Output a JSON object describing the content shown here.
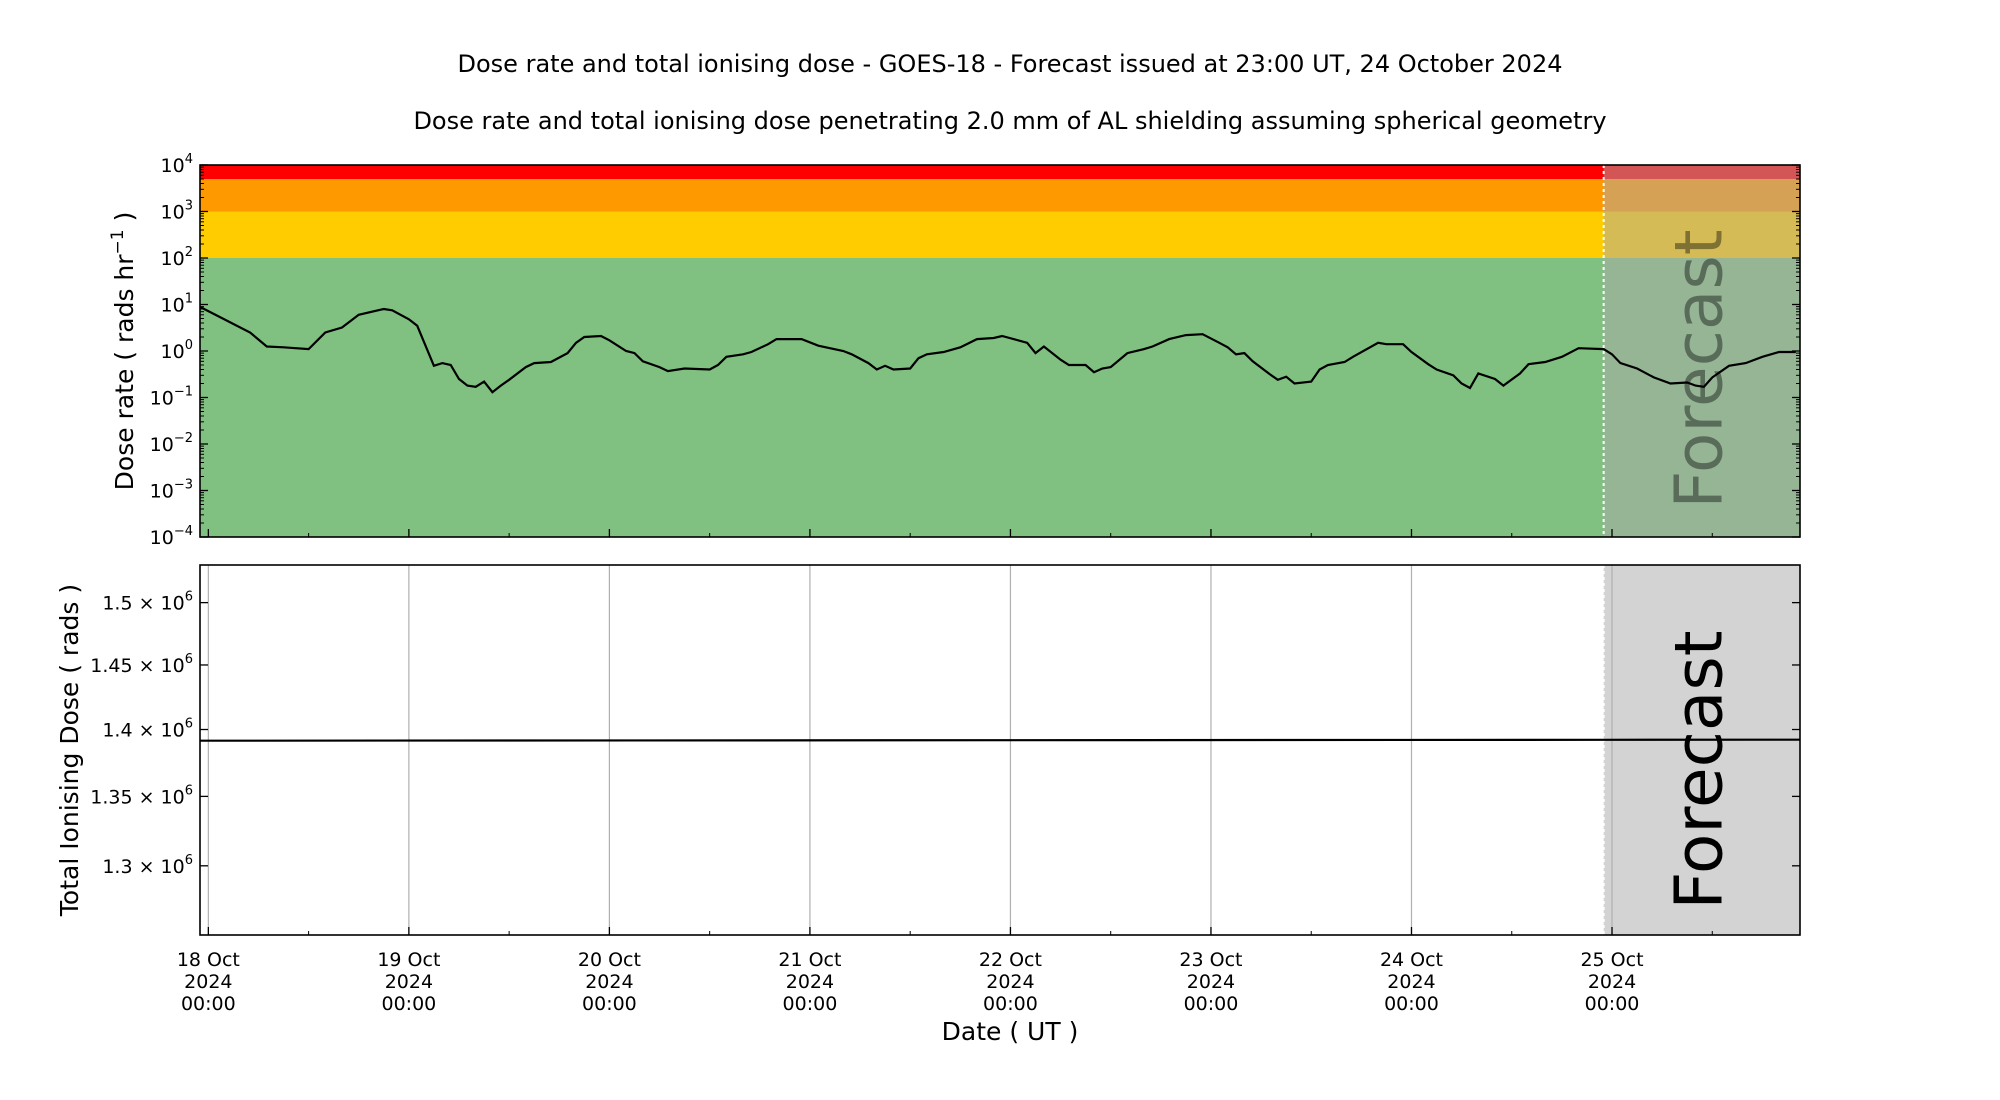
{
  "chart_data": [
    {
      "type": "line",
      "title": "Dose rate and total ionising dose - GOES-18 - Forecast issued at 23:00 UT, 24 October 2024",
      "subtitle": "Dose rate and total ionising dose penetrating 2.0 mm of AL shielding assuming spherical geometry",
      "ylabel": {
        "text": "Dose rate ( rads hr",
        "sup": "−1",
        "after": " )"
      },
      "yscale": "log",
      "ylim": [
        0.0001,
        10000
      ],
      "yticks": [
        {
          "value": 0.0001,
          "base": "10",
          "exp": "−4"
        },
        {
          "value": 0.001,
          "base": "10",
          "exp": "−3"
        },
        {
          "value": 0.01,
          "base": "10",
          "exp": "−2"
        },
        {
          "value": 0.1,
          "base": "10",
          "exp": "−1"
        },
        {
          "value": 1,
          "base": "10",
          "exp": "0"
        },
        {
          "value": 10,
          "base": "10",
          "exp": "1"
        },
        {
          "value": 100,
          "base": "10",
          "exp": "2"
        },
        {
          "value": 1000,
          "base": "10",
          "exp": "3"
        },
        {
          "value": 10000,
          "base": "10",
          "exp": "4"
        }
      ],
      "xlim": [
        "2024-10-17T23:00",
        "2024-10-25T22:30"
      ],
      "grid": false,
      "bands": [
        {
          "from": 0.0001,
          "to": 100,
          "color": "#80c080"
        },
        {
          "from": 100,
          "to": 1000,
          "color": "#ffcc00"
        },
        {
          "from": 1000,
          "to": 5000,
          "color": "#ff9900"
        },
        {
          "from": 5000,
          "to": 10000,
          "color": "#ff0000"
        }
      ],
      "line_color": "#000000",
      "forecast_start": "2024-10-24T23:00",
      "forecast_label": "Forecast",
      "series": [
        {
          "points": [
            [
              "2024-10-17T23:00",
              8.9
            ],
            [
              "2024-10-18T05:00",
              2.5
            ],
            [
              "2024-10-18T07:00",
              1.25
            ],
            [
              "2024-10-18T09:00",
              1.2
            ],
            [
              "2024-10-18T12:00",
              1.1
            ],
            [
              "2024-10-18T14:00",
              2.5
            ],
            [
              "2024-10-18T16:00",
              3.2
            ],
            [
              "2024-10-18T18:00",
              6
            ],
            [
              "2024-10-18T21:00",
              8
            ],
            [
              "2024-10-18T22:00",
              7.5
            ],
            [
              "2024-10-19T00:00",
              4.8
            ],
            [
              "2024-10-19T01:00",
              3.5
            ],
            [
              "2024-10-19T03:00",
              0.48
            ],
            [
              "2024-10-19T04:00",
              0.55
            ],
            [
              "2024-10-19T05:00",
              0.5
            ],
            [
              "2024-10-19T06:00",
              0.25
            ],
            [
              "2024-10-19T07:00",
              0.18
            ],
            [
              "2024-10-19T08:00",
              0.17
            ],
            [
              "2024-10-19T09:00",
              0.22
            ],
            [
              "2024-10-19T10:00",
              0.13
            ],
            [
              "2024-10-19T11:00",
              0.18
            ],
            [
              "2024-10-19T12:00",
              0.24
            ],
            [
              "2024-10-19T14:00",
              0.45
            ],
            [
              "2024-10-19T15:00",
              0.55
            ],
            [
              "2024-10-19T17:00",
              0.58
            ],
            [
              "2024-10-19T19:00",
              0.9
            ],
            [
              "2024-10-19T20:00",
              1.5
            ],
            [
              "2024-10-19T21:00",
              2.0
            ],
            [
              "2024-10-19T23:00",
              2.1
            ],
            [
              "2024-10-20T00:00",
              1.7
            ],
            [
              "2024-10-20T02:00",
              1.0
            ],
            [
              "2024-10-20T03:00",
              0.9
            ],
            [
              "2024-10-20T04:00",
              0.6
            ],
            [
              "2024-10-20T06:00",
              0.45
            ],
            [
              "2024-10-20T07:00",
              0.37
            ],
            [
              "2024-10-20T09:00",
              0.42
            ],
            [
              "2024-10-20T12:00",
              0.4
            ],
            [
              "2024-10-20T13:00",
              0.5
            ],
            [
              "2024-10-20T14:00",
              0.75
            ],
            [
              "2024-10-20T16:00",
              0.85
            ],
            [
              "2024-10-20T17:00",
              0.95
            ],
            [
              "2024-10-20T19:00",
              1.4
            ],
            [
              "2024-10-20T20:00",
              1.8
            ],
            [
              "2024-10-20T23:00",
              1.8
            ],
            [
              "2024-10-21T01:00",
              1.3
            ],
            [
              "2024-10-21T04:00",
              1.0
            ],
            [
              "2024-10-21T05:00",
              0.85
            ],
            [
              "2024-10-21T07:00",
              0.55
            ],
            [
              "2024-10-21T08:00",
              0.4
            ],
            [
              "2024-10-21T09:00",
              0.48
            ],
            [
              "2024-10-21T10:00",
              0.4
            ],
            [
              "2024-10-21T12:00",
              0.42
            ],
            [
              "2024-10-21T13:00",
              0.7
            ],
            [
              "2024-10-21T14:00",
              0.85
            ],
            [
              "2024-10-21T16:00",
              0.95
            ],
            [
              "2024-10-21T18:00",
              1.2
            ],
            [
              "2024-10-21T20:00",
              1.8
            ],
            [
              "2024-10-21T22:00",
              1.9
            ],
            [
              "2024-10-21T23:00",
              2.1
            ],
            [
              "2024-10-22T02:00",
              1.5
            ],
            [
              "2024-10-22T03:00",
              0.9
            ],
            [
              "2024-10-22T04:00",
              1.25
            ],
            [
              "2024-10-22T06:00",
              0.65
            ],
            [
              "2024-10-22T07:00",
              0.5
            ],
            [
              "2024-10-22T09:00",
              0.5
            ],
            [
              "2024-10-22T10:00",
              0.35
            ],
            [
              "2024-10-22T11:00",
              0.42
            ],
            [
              "2024-10-22T12:00",
              0.45
            ],
            [
              "2024-10-22T14:00",
              0.9
            ],
            [
              "2024-10-22T16:00",
              1.1
            ],
            [
              "2024-10-22T17:00",
              1.25
            ],
            [
              "2024-10-22T19:00",
              1.8
            ],
            [
              "2024-10-22T21:00",
              2.2
            ],
            [
              "2024-10-22T23:00",
              2.3
            ],
            [
              "2024-10-23T01:00",
              1.5
            ],
            [
              "2024-10-23T02:00",
              1.2
            ],
            [
              "2024-10-23T03:00",
              0.85
            ],
            [
              "2024-10-23T04:00",
              0.9
            ],
            [
              "2024-10-23T05:00",
              0.6
            ],
            [
              "2024-10-23T07:00",
              0.32
            ],
            [
              "2024-10-23T08:00",
              0.24
            ],
            [
              "2024-10-23T09:00",
              0.28
            ],
            [
              "2024-10-23T10:00",
              0.2
            ],
            [
              "2024-10-23T12:00",
              0.22
            ],
            [
              "2024-10-23T13:00",
              0.4
            ],
            [
              "2024-10-23T14:00",
              0.5
            ],
            [
              "2024-10-23T16:00",
              0.58
            ],
            [
              "2024-10-23T17:00",
              0.75
            ],
            [
              "2024-10-23T20:00",
              1.5
            ],
            [
              "2024-10-23T21:00",
              1.4
            ],
            [
              "2024-10-23T23:00",
              1.4
            ],
            [
              "2024-10-24T00:00",
              0.95
            ],
            [
              "2024-10-24T02:00",
              0.52
            ],
            [
              "2024-10-24T03:00",
              0.4
            ],
            [
              "2024-10-24T05:00",
              0.3
            ],
            [
              "2024-10-24T06:00",
              0.2
            ],
            [
              "2024-10-24T07:00",
              0.16
            ],
            [
              "2024-10-24T08:00",
              0.33
            ],
            [
              "2024-10-24T10:00",
              0.25
            ],
            [
              "2024-10-24T11:00",
              0.18
            ],
            [
              "2024-10-24T13:00",
              0.33
            ],
            [
              "2024-10-24T14:00",
              0.52
            ],
            [
              "2024-10-24T16:00",
              0.58
            ],
            [
              "2024-10-24T18:00",
              0.75
            ],
            [
              "2024-10-24T20:00",
              1.15
            ],
            [
              "2024-10-24T23:00",
              1.1
            ],
            [
              "2024-10-25T00:00",
              0.85
            ],
            [
              "2024-10-25T01:00",
              0.55
            ],
            [
              "2024-10-25T03:00",
              0.42
            ],
            [
              "2024-10-25T05:00",
              0.27
            ],
            [
              "2024-10-25T07:00",
              0.2
            ],
            [
              "2024-10-25T09:00",
              0.21
            ],
            [
              "2024-10-25T10:00",
              0.18
            ],
            [
              "2024-10-25T11:00",
              0.17
            ],
            [
              "2024-10-25T12:00",
              0.27
            ],
            [
              "2024-10-25T14:00",
              0.48
            ],
            [
              "2024-10-25T16:00",
              0.55
            ],
            [
              "2024-10-25T18:00",
              0.75
            ],
            [
              "2024-10-25T20:00",
              0.95
            ],
            [
              "2024-10-25T21:00",
              0.95
            ],
            [
              "2024-10-25T22:00",
              0.95
            ]
          ]
        }
      ]
    },
    {
      "type": "line",
      "ylabel": "Total Ionising Dose ( rads )",
      "xlabel": "Date ( UT )",
      "yscale": "log",
      "ylim": [
        1252000,
        1531000
      ],
      "yticks": [
        {
          "value": 1300000,
          "mant": "1.3 × 10",
          "exp": "6"
        },
        {
          "value": 1350000,
          "mant": "1.35 × 10",
          "exp": "6"
        },
        {
          "value": 1400000,
          "mant": "1.4 × 10",
          "exp": "6"
        },
        {
          "value": 1450000,
          "mant": "1.45 × 10",
          "exp": "6"
        },
        {
          "value": 1500000,
          "mant": "1.5 × 10",
          "exp": "6"
        }
      ],
      "xlim": [
        "2024-10-17T23:00",
        "2024-10-25T22:30"
      ],
      "grid": "x",
      "forecast_start": "2024-10-24T23:00",
      "forecast_label": "Forecast",
      "forecast_color": "#d3d3d3",
      "series": [
        {
          "points": [
            [
              "2024-10-17T23:00",
              1391500
            ],
            [
              "2024-10-24T23:00",
              1392200
            ],
            [
              "2024-10-25T22:30",
              1392300
            ]
          ]
        }
      ],
      "xticks": [
        {
          "value": "2024-10-18T00:00",
          "lines": [
            "18 Oct",
            "2024",
            "00:00"
          ]
        },
        {
          "value": "2024-10-19T00:00",
          "lines": [
            "19 Oct",
            "2024",
            "00:00"
          ]
        },
        {
          "value": "2024-10-20T00:00",
          "lines": [
            "20 Oct",
            "2024",
            "00:00"
          ]
        },
        {
          "value": "2024-10-21T00:00",
          "lines": [
            "21 Oct",
            "2024",
            "00:00"
          ]
        },
        {
          "value": "2024-10-22T00:00",
          "lines": [
            "22 Oct",
            "2024",
            "00:00"
          ]
        },
        {
          "value": "2024-10-23T00:00",
          "lines": [
            "23 Oct",
            "2024",
            "00:00"
          ]
        },
        {
          "value": "2024-10-24T00:00",
          "lines": [
            "24 Oct",
            "2024",
            "00:00"
          ]
        },
        {
          "value": "2024-10-25T00:00",
          "lines": [
            "25 Oct",
            "2024",
            "00:00"
          ]
        }
      ]
    }
  ]
}
